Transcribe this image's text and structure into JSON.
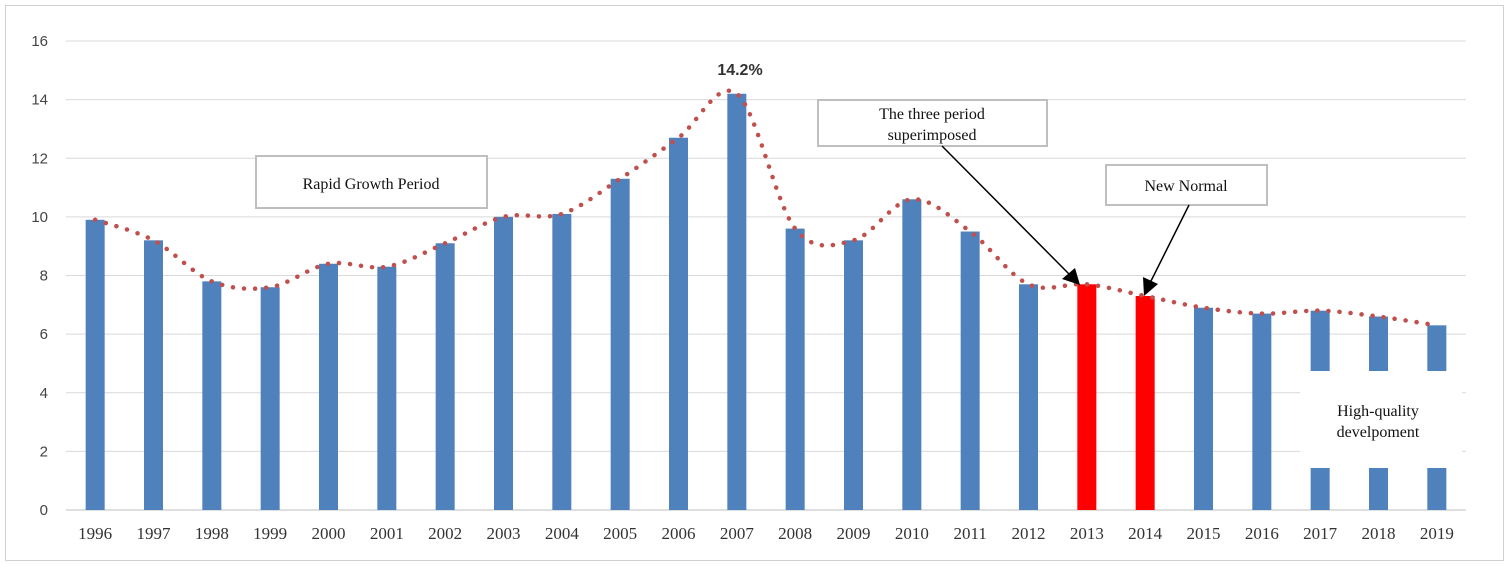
{
  "chart_data": {
    "type": "bar",
    "categories": [
      "1996",
      "1997",
      "1998",
      "1999",
      "2000",
      "2001",
      "2002",
      "2003",
      "2004",
      "2005",
      "2006",
      "2007",
      "2008",
      "2009",
      "2010",
      "2011",
      "2012",
      "2013",
      "2014",
      "2015",
      "2016",
      "2017",
      "2018",
      "2019"
    ],
    "values": [
      9.9,
      9.2,
      7.8,
      7.6,
      8.4,
      8.3,
      9.1,
      10.0,
      10.1,
      11.3,
      12.7,
      14.2,
      9.6,
      9.2,
      10.6,
      9.5,
      7.7,
      7.7,
      7.3,
      6.9,
      6.7,
      6.8,
      6.6,
      6.3
    ],
    "highlighted_categories": [
      "2013",
      "2014"
    ],
    "trendline": "dotted",
    "ylim": [
      0,
      16
    ],
    "yticks": [
      "0",
      "2",
      "4",
      "6",
      "8",
      "10",
      "12",
      "14",
      "16"
    ],
    "grid": true,
    "title": "",
    "xlabel": "",
    "ylabel": "",
    "colors": {
      "bar": "#4f81bd",
      "highlight": "#ff0000",
      "trend": "#c0504d",
      "grid": "#d9d9d9"
    },
    "annotations": {
      "peak_label": "14.2%",
      "rapid": "Rapid Growth Period",
      "three_line1": "The three period",
      "three_line2": "superimposed",
      "new_normal": "New Normal",
      "hq_line1": "High-quality",
      "hq_line2": "develpoment"
    }
  }
}
